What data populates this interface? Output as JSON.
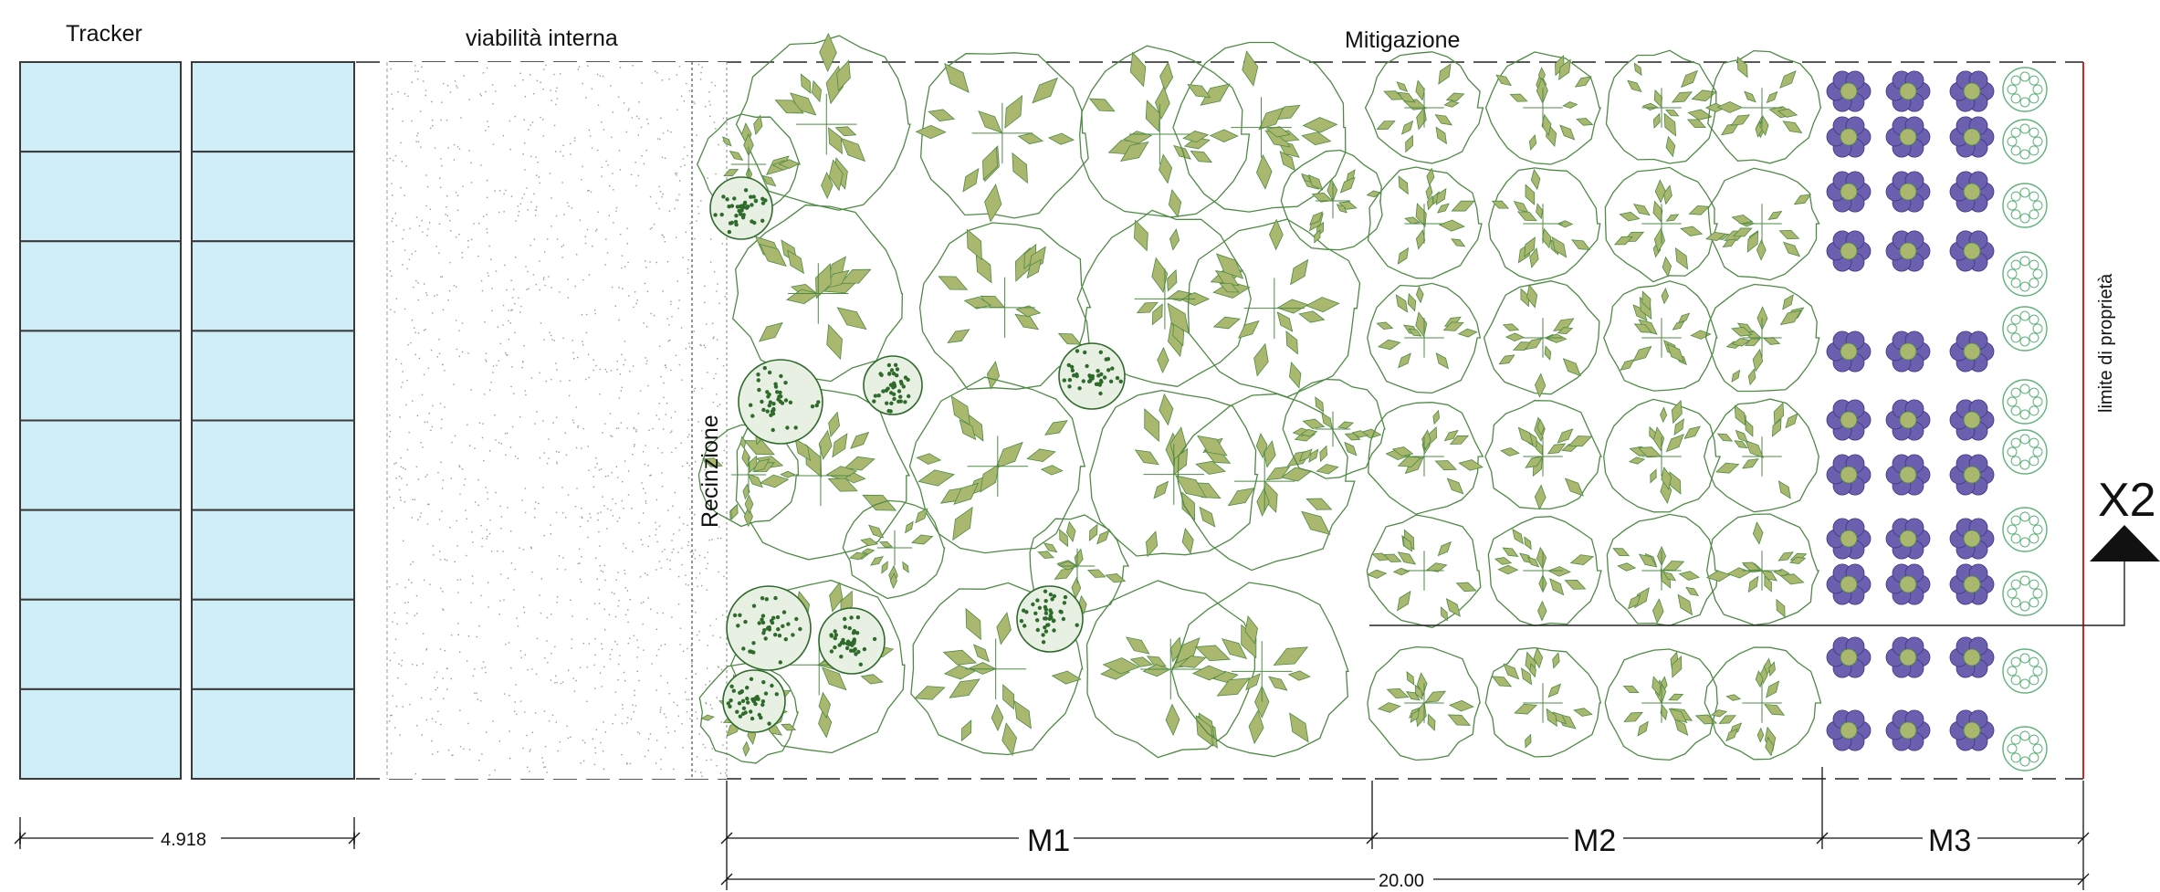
{
  "labels": {
    "tracker": "Tracker",
    "road": "viabilità interna",
    "mitigation": "Mitigazione",
    "fence": "Recinzione",
    "property_limit": "limite di proprietà",
    "section_marker": "X2"
  },
  "dimensions": {
    "tracker_width": "4.918",
    "m1": "M1",
    "m2": "M2",
    "m3": "M3",
    "total": "20.00"
  },
  "colors": {
    "panel_fill": "#cfeef8",
    "panel_line": "#3a3a3a",
    "canopy_line": "#4f8a45",
    "leaf_fill": "#a9b86e",
    "dark_tree": "#2e6b2a",
    "purple_shrub": "#6b5fb0",
    "light_shrub": "#5fb27a",
    "property_line": "#e02020",
    "gravel": "#9a9a9a"
  }
}
